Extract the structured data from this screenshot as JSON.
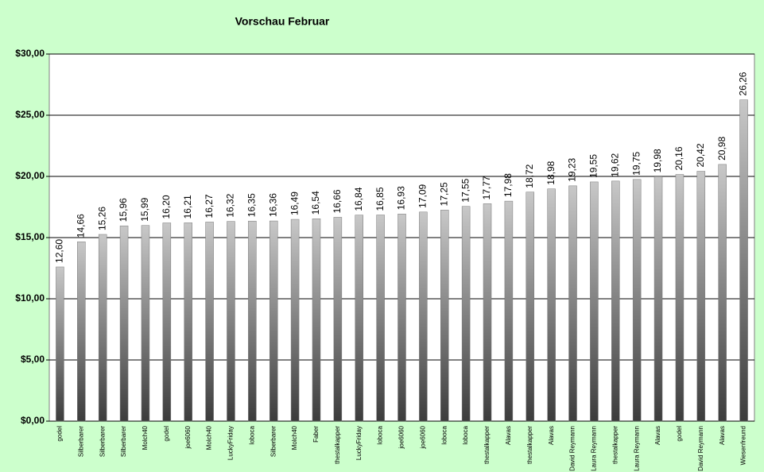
{
  "chart_data": {
    "type": "bar",
    "title": "Vorschau Februar",
    "categories": [
      "godel",
      "Silberbarer",
      "Silberbarer",
      "Silberbarer",
      "Molch40",
      "godel",
      "joe6060",
      "Molch40",
      "LuckyFriday",
      "loboca",
      "Silberbarer",
      "Molch40",
      "Faber",
      "thestalkapper",
      "LuckyFriday",
      "loboca",
      "joe6060",
      "joe6060",
      "loboca",
      "loboca",
      "thestalkapper",
      "Alavas",
      "thestalkapper",
      "Alavas",
      "David Reymann",
      "Laura Reymann",
      "thestalkapper",
      "Laura Reymann",
      "Alavas",
      "godel",
      "David Reymann",
      "Alavas",
      "Wiesenfreund"
    ],
    "values": [
      12.6,
      14.66,
      15.26,
      15.96,
      15.99,
      16.2,
      16.21,
      16.27,
      16.32,
      16.35,
      16.36,
      16.49,
      16.54,
      16.66,
      16.84,
      16.85,
      16.93,
      17.09,
      17.25,
      17.55,
      17.77,
      17.98,
      18.72,
      18.98,
      19.23,
      19.55,
      19.62,
      19.75,
      19.98,
      20.16,
      20.42,
      20.98,
      26.26
    ],
    "value_labels": [
      "12,60",
      "14,66",
      "15,26",
      "15,96",
      "15,99",
      "16,20",
      "16,21",
      "16,27",
      "16,32",
      "16,35",
      "16,36",
      "16,49",
      "16,54",
      "16,66",
      "16,84",
      "16,85",
      "16,93",
      "17,09",
      "17,25",
      "17,55",
      "17,77",
      "17,98",
      "18,72",
      "18,98",
      "19,23",
      "19,55",
      "19,62",
      "19,75",
      "19,98",
      "20,16",
      "20,42",
      "20,98",
      "26,26"
    ],
    "color": "#777777",
    "ylim": [
      0,
      30
    ],
    "yticks": [
      {
        "value": 0,
        "label": "$0,00"
      },
      {
        "value": 5,
        "label": "$5,00"
      },
      {
        "value": 10,
        "label": "$10,00"
      },
      {
        "value": 15,
        "label": "$15,00"
      },
      {
        "value": 20,
        "label": "$20,00"
      },
      {
        "value": 25,
        "label": "$25,00"
      },
      {
        "value": 30,
        "label": "$30,00"
      }
    ],
    "grid": true
  }
}
